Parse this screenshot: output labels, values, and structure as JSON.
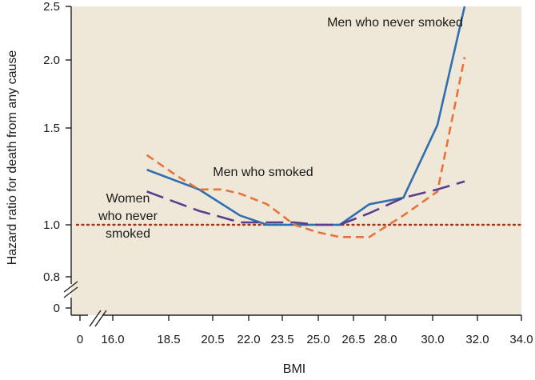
{
  "chart_data": {
    "type": "line",
    "xlabel": "BMI",
    "ylabel": "Hazard ratio for death from any cause",
    "x_ticks": [
      "0",
      "16.0",
      "18.5",
      "20.5",
      "22.0",
      "23.5",
      "25.0",
      "26.5",
      "28.0",
      "30.0",
      "32.0",
      "34.0"
    ],
    "y_ticks": [
      "2.5",
      "2.0",
      "1.5",
      "1.0",
      "0.8",
      "0"
    ],
    "xlim": [
      15.0,
      34.0
    ],
    "ylim": [
      0.8,
      2.5
    ],
    "y_scale": "log",
    "axis_breaks": true,
    "grid": false,
    "background": "#efe8d9",
    "reference_line": {
      "y": 1.0,
      "style": "dotted",
      "color": "#9c3a1f"
    },
    "series": [
      {
        "key": "men_never_smoked",
        "color": "#2e6fb0",
        "dash": "solid",
        "x": [
          17.5,
          19.8,
          21.6,
          22.8,
          24.0,
          25.0,
          26.0,
          27.3,
          28.8,
          30.3,
          31.5
        ],
        "y": [
          1.26,
          1.16,
          1.04,
          1.0,
          1.0,
          1.0,
          1.0,
          1.09,
          1.12,
          1.52,
          2.5
        ]
      },
      {
        "key": "men_smoked",
        "color": "#e8733a",
        "dash": "dashed",
        "x": [
          17.5,
          18.8,
          19.8,
          20.8,
          21.6,
          22.8,
          24.0,
          25.0,
          26.0,
          27.3,
          28.8,
          30.3,
          31.5
        ],
        "y": [
          1.34,
          1.23,
          1.16,
          1.16,
          1.14,
          1.09,
          1.0,
          0.97,
          0.95,
          0.95,
          1.04,
          1.15,
          2.02
        ]
      },
      {
        "key": "women_never_smoked",
        "color": "#5b3d8c",
        "dash": "longdash",
        "x": [
          17.5,
          19.8,
          21.6,
          22.8,
          24.0,
          25.0,
          26.0,
          27.3,
          28.8,
          30.3,
          31.5
        ],
        "y": [
          1.15,
          1.06,
          1.01,
          1.01,
          1.01,
          1.0,
          1.0,
          1.05,
          1.12,
          1.16,
          1.2
        ]
      }
    ],
    "annotations": [
      {
        "series": "men_never_smoked",
        "lines": [
          "Men who never smoked"
        ]
      },
      {
        "series": "men_smoked",
        "lines": [
          "Men who smoked"
        ]
      },
      {
        "series": "women_never_smoked",
        "lines": [
          "Women",
          "who never",
          "smoked"
        ]
      }
    ]
  }
}
